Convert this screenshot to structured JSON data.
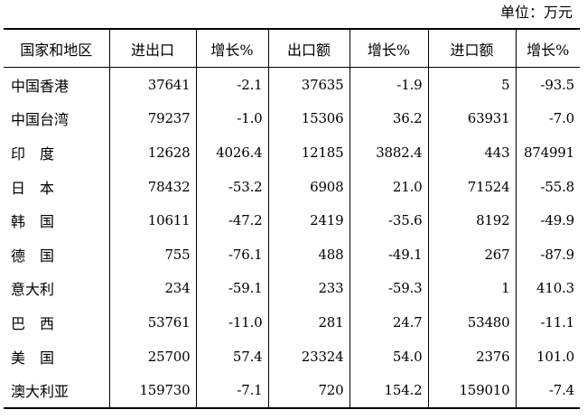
{
  "unit_label": "单位：万元",
  "table": {
    "headers": [
      "国家和地区",
      "进出口",
      "增长%",
      "出口额",
      "增长%",
      "进口额",
      "增长%"
    ],
    "rows": [
      [
        "中国香港",
        "37641",
        "-2.1",
        "37635",
        "-1.9",
        "5",
        "-93.5"
      ],
      [
        "中国台湾",
        "79237",
        "-1.0",
        "15306",
        "36.2",
        "63931",
        "-7.0"
      ],
      [
        "印　度",
        "12628",
        "4026.4",
        "12185",
        "3882.4",
        "443",
        "874991"
      ],
      [
        "日　本",
        "78432",
        "-53.2",
        "6908",
        "21.0",
        "71524",
        "-55.8"
      ],
      [
        "韩　国",
        "10611",
        "-47.2",
        "2419",
        "-35.6",
        "8192",
        "-49.9"
      ],
      [
        "德　国",
        "755",
        "-76.1",
        "488",
        "-49.1",
        "267",
        "-87.9"
      ],
      [
        "意大利",
        "234",
        "-59.1",
        "233",
        "-59.3",
        "1",
        "410.3"
      ],
      [
        "巴　西",
        "53761",
        "-11.0",
        "281",
        "24.7",
        "53480",
        "-11.1"
      ],
      [
        "美　国",
        "25700",
        "57.4",
        "23324",
        "54.0",
        "2376",
        "101.0"
      ],
      [
        "澳大利亚",
        "159730",
        "-7.1",
        "720",
        "154.2",
        "159010",
        "-7.4"
      ]
    ]
  }
}
